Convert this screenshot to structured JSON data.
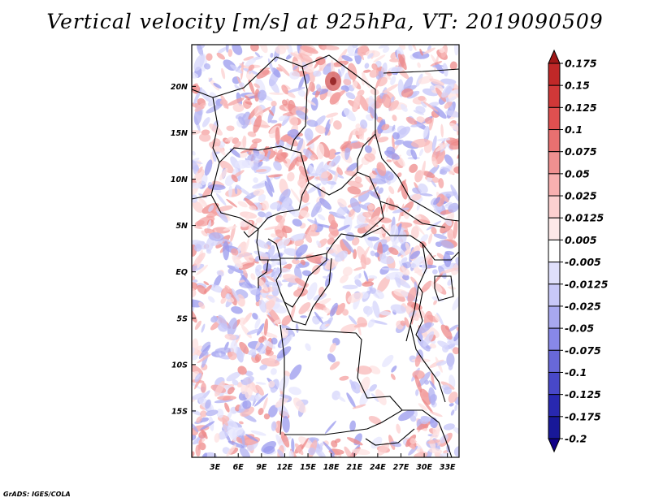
{
  "title": "Vertical velocity [m/s] at 925hPa, VT: 2019090509",
  "credit": "GrADS: IGES/COLA",
  "map": {
    "lon_range": [
      0,
      34.5
    ],
    "lat_range": [
      -20,
      24.5
    ],
    "lat_ticks": [
      {
        "value": 20,
        "label": "20N"
      },
      {
        "value": 15,
        "label": "15N"
      },
      {
        "value": 10,
        "label": "10N"
      },
      {
        "value": 5,
        "label": "5N"
      },
      {
        "value": 0,
        "label": "EQ"
      },
      {
        "value": -5,
        "label": "5S"
      },
      {
        "value": -10,
        "label": "10S"
      },
      {
        "value": -15,
        "label": "15S"
      }
    ],
    "lon_ticks": [
      {
        "value": 3,
        "label": "3E"
      },
      {
        "value": 6,
        "label": "6E"
      },
      {
        "value": 9,
        "label": "9E"
      },
      {
        "value": 12,
        "label": "12E"
      },
      {
        "value": 15,
        "label": "15E"
      },
      {
        "value": 18,
        "label": "18E"
      },
      {
        "value": 21,
        "label": "21E"
      },
      {
        "value": 24,
        "label": "24E"
      },
      {
        "value": 27,
        "label": "27E"
      },
      {
        "value": 30,
        "label": "30E"
      },
      {
        "value": 33,
        "label": "33E"
      }
    ]
  },
  "colorbar": {
    "levels": [
      "0.175",
      "0.15",
      "0.125",
      "0.1",
      "0.075",
      "0.05",
      "0.025",
      "0.0125",
      "0.005",
      "-0.005",
      "-0.0125",
      "-0.025",
      "-0.05",
      "-0.075",
      "-0.1",
      "-0.125",
      "-0.175",
      "-0.2"
    ],
    "colors": [
      "#a01818",
      "#c02828",
      "#d03838",
      "#e05050",
      "#e87070",
      "#f09090",
      "#f8b0b0",
      "#fcd0d0",
      "#fde8e8",
      "#ffffff",
      "#e0e0fc",
      "#c8c8f8",
      "#a8a8f0",
      "#8888e8",
      "#6868d8",
      "#4848c8",
      "#2828b0",
      "#181898",
      "#100088"
    ]
  }
}
